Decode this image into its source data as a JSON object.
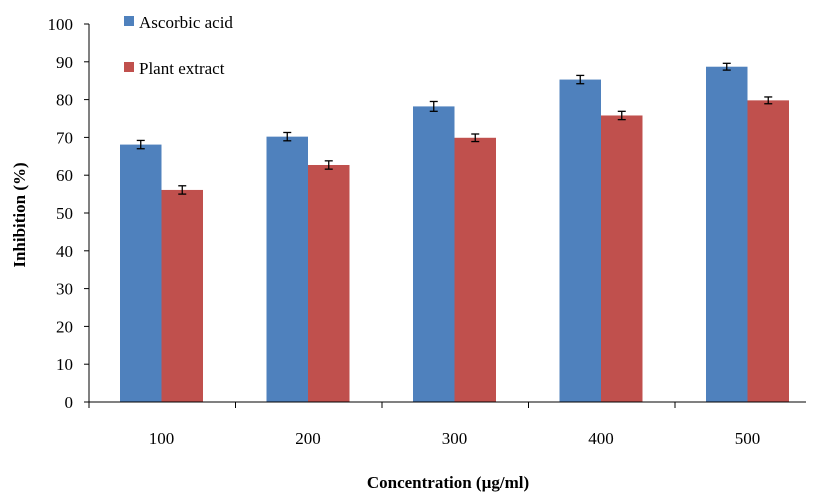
{
  "chart_data": {
    "type": "bar",
    "categories": [
      "100",
      "200",
      "300",
      "400",
      "500"
    ],
    "series": [
      {
        "name": "Ascorbic acid",
        "values": [
          68.1,
          70.2,
          78.2,
          85.3,
          88.7
        ],
        "errors": [
          1.1,
          1.1,
          1.3,
          1.1,
          0.9
        ],
        "color": "#4f81bd"
      },
      {
        "name": "Plant extract",
        "values": [
          56.1,
          62.7,
          69.9,
          75.8,
          79.8
        ],
        "errors": [
          1.1,
          1.1,
          1.0,
          1.1,
          0.9
        ],
        "color": "#c0504d"
      }
    ],
    "title": "",
    "xlabel": "Concentration (µg/ml)",
    "ylabel": "Inhibition (%)",
    "ylim": [
      0,
      100
    ],
    "yticks": [
      0,
      10,
      20,
      30,
      40,
      50,
      60,
      70,
      80,
      90,
      100
    ],
    "grid": false,
    "legend_position": "top-left"
  }
}
